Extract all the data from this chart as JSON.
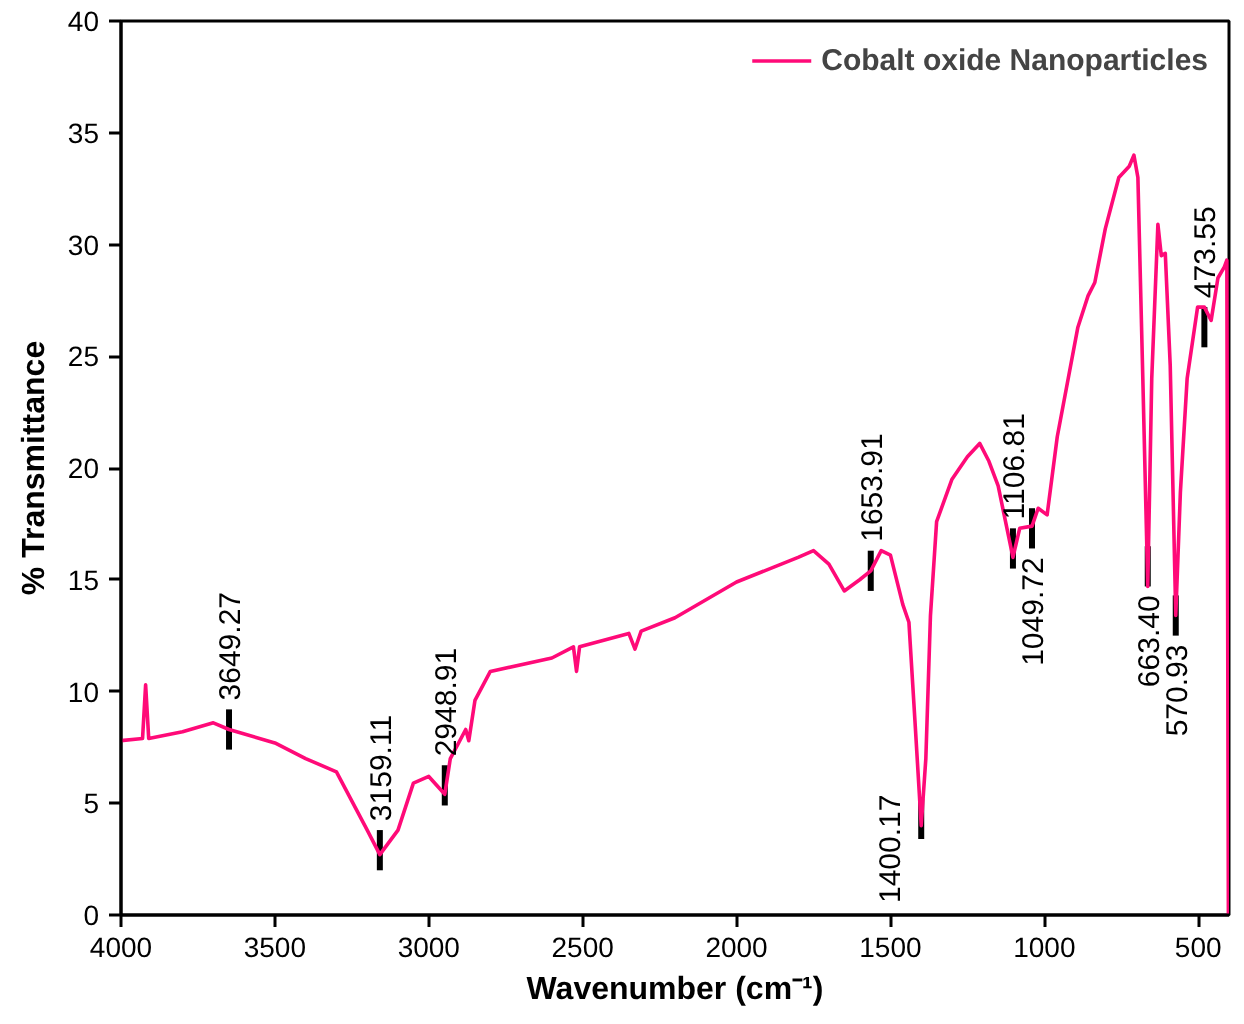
{
  "chart_data": {
    "type": "line",
    "xlabel": "Wavenumber (cm⁻¹)",
    "ylabel": "% Transmittance",
    "xlim": [
      4000,
      400
    ],
    "xticks": [
      4000,
      3500,
      3000,
      2500,
      2000,
      1500,
      1000,
      500
    ],
    "ylim": [
      0,
      40
    ],
    "yticks": [
      0,
      5,
      10,
      15,
      20,
      25,
      30,
      35,
      40
    ],
    "grid": false,
    "legend": "top right",
    "line_style": "solid",
    "marker": "none",
    "series": [
      {
        "name": "Cobalt oxide Nanoparticles",
        "color": "#ff0a78",
        "x": [
          4000,
          3930,
          3920,
          3910,
          3800,
          3700,
          3649,
          3500,
          3400,
          3300,
          3200,
          3159,
          3100,
          3050,
          3000,
          2948,
          2930,
          2880,
          2870,
          2850,
          2800,
          2600,
          2530,
          2520,
          2510,
          2350,
          2330,
          2310,
          2200,
          2000,
          1800,
          1750,
          1700,
          1650,
          1600,
          1564,
          1530,
          1500,
          1460,
          1440,
          1420,
          1400,
          1385,
          1370,
          1350,
          1300,
          1250,
          1210,
          1180,
          1150,
          1102,
          1080,
          1040,
          1020,
          991,
          958,
          891,
          858,
          836,
          802,
          758,
          724,
          709,
          696,
          680,
          664,
          651,
          631,
          620,
          607,
          591,
          573,
          558,
          536,
          502,
          480,
          458,
          436,
          415,
          407,
          402
        ],
        "values": [
          7.8,
          7.9,
          10.3,
          7.9,
          8.2,
          8.6,
          8.3,
          7.7,
          7.0,
          6.4,
          3.8,
          2.7,
          3.8,
          5.9,
          6.2,
          5.4,
          7.0,
          8.3,
          7.8,
          9.6,
          10.9,
          11.5,
          12.0,
          10.9,
          12.0,
          12.6,
          11.9,
          12.7,
          13.3,
          14.9,
          16.0,
          16.3,
          15.7,
          14.5,
          15.0,
          15.4,
          16.3,
          16.1,
          13.9,
          13.1,
          8.6,
          4.0,
          7.0,
          13.4,
          17.6,
          19.5,
          20.5,
          21.1,
          20.3,
          19.2,
          16.0,
          17.3,
          17.4,
          18.2,
          17.9,
          21.4,
          26.3,
          27.7,
          28.3,
          30.7,
          33.0,
          33.5,
          34.0,
          33.0,
          24.0,
          14.7,
          24.0,
          30.9,
          29.5,
          29.6,
          24.6,
          13.4,
          18.9,
          24.0,
          27.2,
          27.2,
          26.6,
          28.5,
          29.0,
          29.3,
          0
        ]
      }
    ],
    "annotations": [
      {
        "text": "3649.27",
        "x": 3649,
        "y": 8.3
      },
      {
        "text": "3159.11",
        "x": 3159,
        "y": 2.9
      },
      {
        "text": "2948.91",
        "x": 2948,
        "y": 5.8
      },
      {
        "text": "1653.91",
        "x": 1564,
        "y": 15.4
      },
      {
        "text": "1400.17",
        "x": 1400,
        "y": 4.3
      },
      {
        "text": "1106.81",
        "x": 1102,
        "y": 16.4
      },
      {
        "text": "1049.72",
        "x": 1040,
        "y": 17.3
      },
      {
        "text": "663.40",
        "x": 664,
        "y": 15.6
      },
      {
        "text": "570.93",
        "x": 573,
        "y": 13.4
      },
      {
        "text": "473.55",
        "x": 480,
        "y": 26.3
      }
    ]
  }
}
